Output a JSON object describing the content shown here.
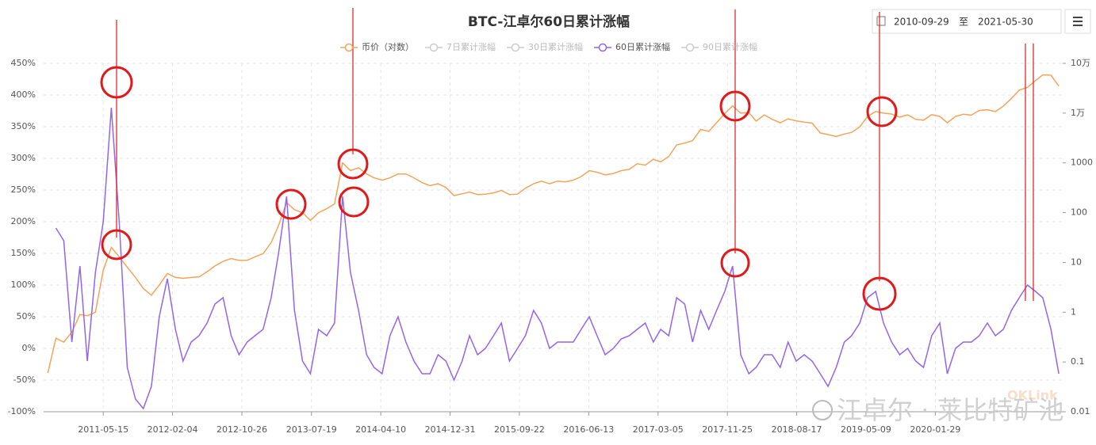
{
  "toolbar": {
    "separator": "至"
  },
  "watermarks": [
    "江卓尔 · 莱比特矿池",
    "OKLink"
  ],
  "chart_data": {
    "type": "line",
    "title": "BTC-江卓尔60日累计涨幅",
    "xlim": [
      "2010-09-29",
      "2021-05-30"
    ],
    "xticks": [
      "2011-05-15",
      "2012-02-04",
      "2012-10-26",
      "2013-07-19",
      "2014-04-10",
      "2014-12-31",
      "2015-09-22",
      "2016-06-13",
      "2017-03-05",
      "2017-11-25",
      "2018-08-17",
      "2019-05-09",
      "2020-01-29"
    ],
    "ylim": [
      -100,
      450
    ],
    "yticks": [
      {
        "value": -100,
        "label": "-100%"
      },
      {
        "value": -50,
        "label": "-50%"
      },
      {
        "value": 0,
        "label": "0%"
      },
      {
        "value": 50,
        "label": "50%"
      },
      {
        "value": 100,
        "label": "100%"
      },
      {
        "value": 150,
        "label": "150%"
      },
      {
        "value": 200,
        "label": "200%"
      },
      {
        "value": 250,
        "label": "250%"
      },
      {
        "value": 300,
        "label": "300%"
      },
      {
        "value": 350,
        "label": "350%"
      },
      {
        "value": 400,
        "label": "400%"
      },
      {
        "value": 450,
        "label": "450%"
      }
    ],
    "y2lim": [
      0.01,
      100000
    ],
    "y2log": true,
    "y2ticks": [
      0.01,
      0.1,
      1,
      10,
      100,
      1000,
      {
        "value": 10000,
        "label": "1万"
      },
      {
        "value": 100000,
        "label": "10万"
      }
    ],
    "grid": true,
    "x": [
      "2010-10-15",
      "2010-11-15",
      "2010-12-15",
      "2011-01-15",
      "2011-02-15",
      "2011-03-15",
      "2011-04-15",
      "2011-05-15",
      "2011-06-15",
      "2011-07-15",
      "2011-08-15",
      "2011-09-15",
      "2011-10-15",
      "2011-11-15",
      "2011-12-15",
      "2012-01-15",
      "2012-02-15",
      "2012-03-15",
      "2012-04-15",
      "2012-05-15",
      "2012-06-15",
      "2012-07-15",
      "2012-08-15",
      "2012-09-15",
      "2012-10-15",
      "2012-11-15",
      "2012-12-15",
      "2013-01-15",
      "2013-02-15",
      "2013-03-15",
      "2013-04-15",
      "2013-05-15",
      "2013-06-15",
      "2013-07-15",
      "2013-08-15",
      "2013-09-15",
      "2013-10-15",
      "2013-11-15",
      "2013-12-15",
      "2014-01-15",
      "2014-02-15",
      "2014-03-15",
      "2014-04-15",
      "2014-05-15",
      "2014-06-15",
      "2014-07-15",
      "2014-08-15",
      "2014-09-15",
      "2014-10-15",
      "2014-11-15",
      "2014-12-15",
      "2015-01-15",
      "2015-02-15",
      "2015-03-15",
      "2015-04-15",
      "2015-05-15",
      "2015-06-15",
      "2015-07-15",
      "2015-08-15",
      "2015-09-15",
      "2015-10-15",
      "2015-11-15",
      "2015-12-15",
      "2016-01-15",
      "2016-02-15",
      "2016-03-15",
      "2016-04-15",
      "2016-05-15",
      "2016-06-15",
      "2016-07-15",
      "2016-08-15",
      "2016-09-15",
      "2016-10-15",
      "2016-11-15",
      "2016-12-15",
      "2017-01-15",
      "2017-02-15",
      "2017-03-15",
      "2017-04-15",
      "2017-05-15",
      "2017-06-15",
      "2017-07-15",
      "2017-08-15",
      "2017-09-15",
      "2017-10-15",
      "2017-11-15",
      "2017-12-15",
      "2018-01-15",
      "2018-02-15",
      "2018-03-15",
      "2018-04-15",
      "2018-05-15",
      "2018-06-15",
      "2018-07-15",
      "2018-08-15",
      "2018-09-15",
      "2018-10-15",
      "2018-11-15",
      "2018-12-15",
      "2019-01-15",
      "2019-02-15",
      "2019-03-15",
      "2019-04-15",
      "2019-05-15",
      "2019-06-15",
      "2019-07-15",
      "2019-08-15",
      "2019-09-15",
      "2019-10-15",
      "2019-11-15",
      "2019-12-15",
      "2020-01-15",
      "2020-02-15",
      "2020-03-15",
      "2020-04-15",
      "2020-05-15",
      "2020-06-15",
      "2020-07-15",
      "2020-08-15",
      "2020-09-15",
      "2020-10-15",
      "2020-11-15",
      "2020-12-15",
      "2021-01-15",
      "2021-02-15",
      "2021-03-15",
      "2021-04-15",
      "2021-05-15"
    ],
    "series": [
      {
        "name": "币价（对数）",
        "color": "#f5a35c",
        "axis": "y2",
        "visible": true,
        "values": [
          0.06,
          0.3,
          0.25,
          0.4,
          0.9,
          0.85,
          1.0,
          7,
          20,
          13,
          8,
          5,
          3,
          2.2,
          3.5,
          6,
          5,
          4.8,
          5,
          5.1,
          6.5,
          8.5,
          10.5,
          12,
          11,
          11,
          13,
          15,
          25,
          55,
          160,
          115,
          100,
          70,
          100,
          120,
          150,
          1000,
          700,
          800,
          600,
          500,
          450,
          500,
          600,
          600,
          500,
          400,
          350,
          380,
          320,
          220,
          240,
          260,
          230,
          235,
          250,
          280,
          230,
          235,
          310,
          380,
          430,
          380,
          430,
          415,
          450,
          530,
          700,
          650,
          575,
          610,
          700,
          740,
          960,
          900,
          1180,
          1050,
          1350,
          2300,
          2500,
          2800,
          4700,
          4300,
          6400,
          9800,
          14000,
          10000,
          10300,
          6900,
          9200,
          7500,
          6400,
          7700,
          7000,
          6600,
          6300,
          4000,
          3700,
          3400,
          3800,
          4100,
          5300,
          8600,
          10800,
          10000,
          9600,
          8300,
          9200,
          7500,
          7200,
          9300,
          8600,
          6400,
          8600,
          9500,
          9100,
          11300,
          11700,
          10800,
          13800,
          19700,
          29000,
          33000,
          45000,
          58800,
          57700,
          35000
        ]
      },
      {
        "name": "7日累计涨幅",
        "visible": false
      },
      {
        "name": "30日累计涨幅",
        "visible": false
      },
      {
        "name": "60日累计涨幅",
        "color": "#9166ee",
        "visible": true,
        "values": [
          null,
          190,
          170,
          10,
          130,
          -20,
          120,
          200,
          380,
          200,
          -30,
          -80,
          -95,
          -60,
          50,
          110,
          30,
          -20,
          10,
          20,
          40,
          70,
          80,
          20,
          -10,
          10,
          20,
          30,
          80,
          150,
          240,
          60,
          -20,
          -40,
          30,
          20,
          40,
          240,
          120,
          60,
          -10,
          -30,
          -40,
          20,
          50,
          10,
          -20,
          -40,
          -40,
          -10,
          -20,
          -50,
          -20,
          20,
          -10,
          0,
          20,
          40,
          -20,
          0,
          20,
          60,
          40,
          0,
          10,
          10,
          10,
          30,
          50,
          20,
          -10,
          0,
          15,
          20,
          30,
          40,
          10,
          30,
          20,
          80,
          70,
          10,
          60,
          30,
          60,
          90,
          130,
          -10,
          -40,
          -30,
          -10,
          -10,
          -30,
          10,
          -20,
          -10,
          -20,
          -40,
          -60,
          -30,
          10,
          20,
          40,
          80,
          90,
          40,
          10,
          -10,
          0,
          -20,
          -30,
          20,
          40,
          -40,
          0,
          10,
          10,
          20,
          40,
          20,
          30,
          60,
          80,
          100,
          90,
          80,
          30,
          -40
        ]
      },
      {
        "name": "90日累计涨幅",
        "visible": false
      }
    ]
  }
}
